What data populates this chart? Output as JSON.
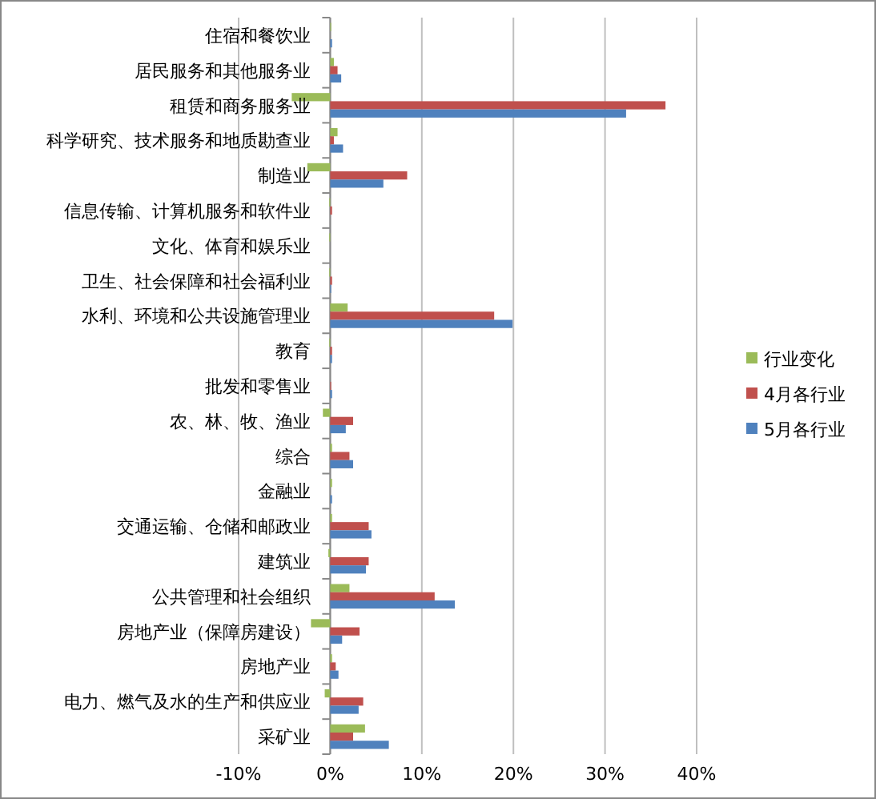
{
  "chart_data": {
    "type": "bar",
    "orientation": "horizontal",
    "categories": [
      "住宿和餐饮业",
      "居民服务和其他服务业",
      "租赁和商务服务业",
      "科学研究、技术服务和地质勘查业",
      "制造业",
      "信息传输、计算机服务和软件业",
      "文化、体育和娱乐业",
      "卫生、社会保障和社会福利业",
      "水利、环境和公共设施管理业",
      "教育",
      "批发和零售业",
      "农、林、牧、渔业",
      "综合",
      "金融业",
      "交通运输、仓储和邮政业",
      "建筑业",
      "公共管理和社会组织",
      "房地产业（保障房建设）",
      "房地产业",
      "电力、燃气及水的生产和供应业",
      "采矿业"
    ],
    "series": [
      {
        "name": "行业变化",
        "color": "#9bbb59",
        "values": [
          0.1,
          0.4,
          -4.2,
          0.8,
          -2.5,
          -0.1,
          -0.1,
          -0.1,
          1.9,
          -0.1,
          0,
          -0.8,
          0.2,
          0.2,
          0.2,
          -0.2,
          2.1,
          -2.1,
          0.2,
          -0.6,
          3.8
        ]
      },
      {
        "name": "4月各行业",
        "color": "#c0504d",
        "values": [
          0,
          0.8,
          36.6,
          0.4,
          8.4,
          0.2,
          0,
          0.2,
          17.9,
          0.2,
          0.1,
          2.5,
          2.1,
          0,
          4.2,
          4.2,
          11.4,
          3.2,
          0.6,
          3.6,
          2.5
        ]
      },
      {
        "name": "5月各行业",
        "color": "#4f81bd",
        "values": [
          0.2,
          1.2,
          32.3,
          1.4,
          5.8,
          0,
          0,
          0.1,
          19.9,
          0.2,
          0.2,
          1.7,
          2.5,
          0.2,
          4.5,
          3.9,
          13.6,
          1.3,
          0.9,
          3.1,
          6.4
        ]
      }
    ],
    "xlim": [
      -10,
      40
    ],
    "xticks": [
      {
        "value": -10,
        "label": "-10%"
      },
      {
        "value": 0,
        "label": "0%"
      },
      {
        "value": 10,
        "label": "10%"
      },
      {
        "value": 20,
        "label": "20%"
      },
      {
        "value": 30,
        "label": "30%"
      },
      {
        "value": 40,
        "label": "40%"
      }
    ],
    "grid": "x",
    "legend": "right"
  }
}
